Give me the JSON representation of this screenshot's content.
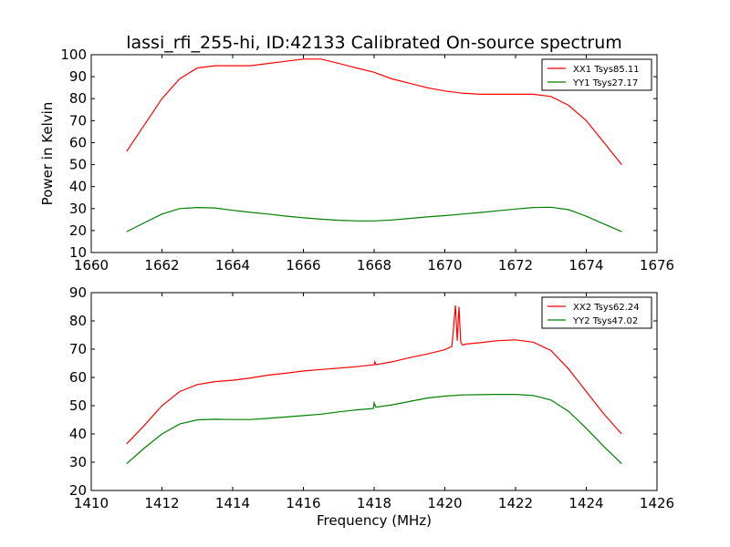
{
  "chart_data": [
    {
      "type": "line",
      "title": "lassi_rfi_255-hi, ID:42133 Calibrated On-source spectrum",
      "xlabel": "",
      "ylabel": "Power in Kelvin",
      "xlim": [
        1660,
        1676
      ],
      "ylim": [
        10,
        100
      ],
      "xticks": [
        1660,
        1662,
        1664,
        1666,
        1668,
        1670,
        1672,
        1674,
        1676
      ],
      "yticks": [
        10,
        20,
        30,
        40,
        50,
        60,
        70,
        80,
        90,
        100
      ],
      "grid": false,
      "legend_position": "top-right",
      "series": [
        {
          "name": "XX1 Tsys85.11",
          "color": "#ff0000",
          "x": [
            1661.0,
            1661.5,
            1662.0,
            1662.5,
            1663.0,
            1663.5,
            1664.0,
            1664.5,
            1665.0,
            1665.5,
            1666.0,
            1666.5,
            1667.0,
            1667.5,
            1668.0,
            1668.5,
            1669.0,
            1669.5,
            1670.0,
            1670.5,
            1671.0,
            1671.5,
            1672.0,
            1672.5,
            1673.0,
            1673.5,
            1674.0,
            1674.5,
            1675.0
          ],
          "y": [
            56,
            68,
            80,
            89,
            94,
            95,
            95,
            95,
            96,
            97,
            98,
            98,
            96,
            94,
            92,
            89,
            87,
            85,
            83.5,
            82.5,
            82,
            82,
            82,
            82,
            81,
            77,
            70,
            60,
            50
          ]
        },
        {
          "name": "YY1 Tsys27.17",
          "color": "#008000",
          "x": [
            1661.0,
            1661.5,
            1662.0,
            1662.5,
            1663.0,
            1663.5,
            1664.0,
            1664.5,
            1665.0,
            1665.5,
            1666.0,
            1666.5,
            1667.0,
            1667.5,
            1668.0,
            1668.5,
            1669.0,
            1669.5,
            1670.0,
            1670.5,
            1671.0,
            1671.5,
            1672.0,
            1672.5,
            1673.0,
            1673.5,
            1674.0,
            1674.5,
            1675.0
          ],
          "y": [
            19.5,
            23.5,
            27.5,
            30,
            30.5,
            30.3,
            29.2,
            28.3,
            27.5,
            26.6,
            25.8,
            25.2,
            24.7,
            24.4,
            24.4,
            24.8,
            25.5,
            26.2,
            26.8,
            27.5,
            28.2,
            29,
            29.8,
            30.5,
            30.6,
            29.5,
            26.5,
            23,
            19.5
          ]
        }
      ]
    },
    {
      "type": "line",
      "title": "",
      "xlabel": "Frequency (MHz)",
      "ylabel": "",
      "xlim": [
        1410,
        1426
      ],
      "ylim": [
        20,
        90
      ],
      "xticks": [
        1410,
        1412,
        1414,
        1416,
        1418,
        1420,
        1422,
        1424,
        1426
      ],
      "yticks": [
        20,
        30,
        40,
        50,
        60,
        70,
        80,
        90
      ],
      "grid": false,
      "legend_position": "top-right",
      "series": [
        {
          "name": "XX2 Tsys62.24",
          "color": "#ff0000",
          "x": [
            1411.0,
            1411.5,
            1412.0,
            1412.5,
            1413.0,
            1413.5,
            1414.0,
            1414.5,
            1415.0,
            1415.5,
            1416.0,
            1416.5,
            1417.0,
            1417.5,
            1418.0,
            1418.02,
            1418.05,
            1418.5,
            1419.0,
            1419.5,
            1420.0,
            1420.2,
            1420.3,
            1420.35,
            1420.4,
            1420.45,
            1420.5,
            1420.6,
            1421.0,
            1421.5,
            1422.0,
            1422.5,
            1423.0,
            1423.5,
            1424.0,
            1424.5,
            1425.0
          ],
          "y": [
            36.5,
            43,
            50,
            55,
            57.5,
            58.5,
            59,
            59.8,
            60.8,
            61.5,
            62.3,
            62.8,
            63.3,
            63.8,
            64.5,
            65.5,
            64.5,
            65.5,
            67,
            68.3,
            69.8,
            71,
            85.5,
            73,
            85,
            72.5,
            71.5,
            71.8,
            72.3,
            73,
            73.3,
            72.5,
            69.5,
            63,
            55,
            47,
            40
          ]
        },
        {
          "name": "YY2 Tsys47.02",
          "color": "#008000",
          "x": [
            1411.0,
            1411.5,
            1412.0,
            1412.5,
            1413.0,
            1413.5,
            1414.0,
            1414.5,
            1415.0,
            1415.5,
            1416.0,
            1416.5,
            1417.0,
            1417.5,
            1417.98,
            1418.0,
            1418.05,
            1418.5,
            1419.0,
            1419.5,
            1420.0,
            1420.5,
            1421.0,
            1421.5,
            1422.0,
            1422.5,
            1423.0,
            1423.5,
            1424.0,
            1424.5,
            1425.0
          ],
          "y": [
            29.5,
            35,
            40,
            43.5,
            45,
            45.2,
            45.1,
            45.1,
            45.5,
            46,
            46.5,
            47,
            47.8,
            48.5,
            49,
            51,
            49.5,
            50.3,
            51.5,
            52.7,
            53.4,
            53.8,
            53.9,
            54,
            54,
            53.6,
            52,
            48,
            42,
            35.5,
            29.5
          ]
        }
      ]
    }
  ]
}
